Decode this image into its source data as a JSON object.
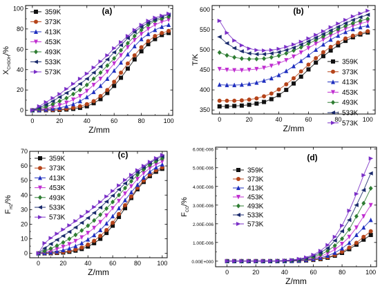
{
  "chart_data": [
    {
      "id": "a",
      "type": "line",
      "panel_label": "(a)",
      "xlabel": "Z/mm",
      "ylabel": "X",
      "ylabel_sub": "CH3OH",
      "ylabel_unit": "/%",
      "xlim": [
        -5,
        103
      ],
      "ylim": [
        -5,
        103
      ],
      "xticks": [
        0,
        20,
        40,
        60,
        80,
        100
      ],
      "yticks": [
        0,
        20,
        40,
        60,
        80,
        100
      ],
      "legend_position": "top-left",
      "x": [
        0,
        5,
        10,
        15,
        20,
        25,
        30,
        35,
        40,
        45,
        50,
        55,
        60,
        65,
        70,
        75,
        80,
        85,
        90,
        95,
        100
      ],
      "series": [
        {
          "name": "359K",
          "color": "#111111",
          "marker": "square",
          "values": [
            0,
            0,
            0.1,
            0.2,
            0.4,
            0.8,
            1.4,
            2.4,
            4,
            7,
            11,
            17,
            24,
            32,
            41,
            50,
            58,
            65,
            70,
            74,
            76
          ]
        },
        {
          "name": "373K",
          "color": "#b5441a",
          "marker": "circle",
          "values": [
            0,
            0.1,
            0.2,
            0.4,
            0.8,
            1.5,
            2.5,
            4,
            6,
            9,
            14,
            20,
            28,
            37,
            46,
            54,
            62,
            68,
            73,
            76,
            78
          ]
        },
        {
          "name": "413K",
          "color": "#1f2fbf",
          "marker": "triangle-up",
          "values": [
            0,
            0.3,
            0.8,
            1.5,
            2.5,
            4,
            6,
            9,
            13,
            18,
            24,
            31,
            39,
            47,
            55,
            63,
            70,
            75,
            79,
            82,
            84
          ]
        },
        {
          "name": "453K",
          "color": "#c02ed0",
          "marker": "triangle-down",
          "values": [
            0,
            0.7,
            1.8,
            3.2,
            5,
            7.5,
            10.5,
            14,
            19,
            25,
            31,
            38,
            46,
            54,
            62,
            69,
            75,
            80,
            84,
            87,
            89
          ]
        },
        {
          "name": "493K",
          "color": "#2e7d32",
          "marker": "diamond",
          "values": [
            0,
            1.5,
            3.5,
            6,
            9,
            12,
            16,
            20,
            25,
            31,
            37,
            44,
            51,
            59,
            66,
            73,
            79,
            84,
            88,
            90,
            92
          ]
        },
        {
          "name": "533K",
          "color": "#1a2a6c",
          "marker": "triangle-left",
          "values": [
            0,
            2.5,
            5.5,
            9,
            13,
            17,
            21,
            26,
            31,
            37,
            43,
            50,
            57,
            64,
            71,
            77,
            82,
            86,
            89,
            92,
            94
          ]
        },
        {
          "name": "573K",
          "color": "#7a2fc7",
          "marker": "triangle-right",
          "values": [
            0,
            4,
            8,
            12,
            16,
            21,
            26,
            31,
            36,
            42,
            48,
            54,
            61,
            67,
            73,
            79,
            84,
            88,
            91,
            93,
            95
          ]
        }
      ]
    },
    {
      "id": "b",
      "type": "line",
      "panel_label": "(b)",
      "xlabel": "Z/mm",
      "ylabel": "T/K",
      "xlim": [
        -5,
        105
      ],
      "ylim": [
        340,
        610
      ],
      "xticks": [
        0,
        20,
        40,
        60,
        80,
        100
      ],
      "yticks": [
        350,
        400,
        450,
        500,
        550,
        600
      ],
      "legend_position": "bottom-right",
      "x": [
        0,
        5,
        10,
        15,
        20,
        25,
        30,
        35,
        40,
        45,
        50,
        55,
        60,
        65,
        70,
        75,
        80,
        85,
        90,
        95,
        100
      ],
      "series": [
        {
          "name": "359K",
          "color": "#111111",
          "marker": "square",
          "values": [
            359,
            359,
            360,
            361,
            363,
            366,
            370,
            377,
            387,
            400,
            416,
            433,
            451,
            468,
            484,
            498,
            511,
            522,
            531,
            538,
            543
          ]
        },
        {
          "name": "373K",
          "color": "#b5441a",
          "marker": "circle",
          "values": [
            373,
            373,
            373,
            374,
            376,
            379,
            384,
            391,
            401,
            414,
            429,
            446,
            463,
            479,
            494,
            507,
            518,
            528,
            535,
            541,
            546
          ]
        },
        {
          "name": "413K",
          "color": "#1f2fbf",
          "marker": "triangle-up",
          "values": [
            413,
            412,
            412,
            413,
            415,
            418,
            423,
            429,
            437,
            447,
            459,
            472,
            486,
            500,
            513,
            525,
            535,
            544,
            551,
            556,
            560
          ]
        },
        {
          "name": "453K",
          "color": "#c02ed0",
          "marker": "triangle-down",
          "values": [
            452,
            450,
            449,
            449,
            450,
            452,
            455,
            460,
            466,
            474,
            483,
            493,
            504,
            515,
            525,
            535,
            544,
            552,
            559,
            565,
            570
          ]
        },
        {
          "name": "493K",
          "color": "#2e7d32",
          "marker": "diamond",
          "values": [
            493,
            486,
            481,
            478,
            477,
            477,
            478,
            481,
            485,
            491,
            498,
            506,
            515,
            524,
            533,
            542,
            551,
            559,
            566,
            572,
            577
          ]
        },
        {
          "name": "533K",
          "color": "#1a2a6c",
          "marker": "triangle-left",
          "values": [
            532,
            516,
            504,
            496,
            491,
            489,
            489,
            491,
            494,
            499,
            505,
            513,
            521,
            530,
            539,
            548,
            557,
            566,
            574,
            581,
            587
          ]
        },
        {
          "name": "573K",
          "color": "#7a2fc7",
          "marker": "triangle-right",
          "values": [
            572,
            542,
            523,
            511,
            503,
            499,
            498,
            499,
            502,
            507,
            513,
            520,
            528,
            537,
            546,
            556,
            565,
            574,
            583,
            590,
            597
          ]
        }
      ]
    },
    {
      "id": "c",
      "type": "line",
      "panel_label": "(c)",
      "xlabel": "Z/mm",
      "ylabel": "F",
      "ylabel_sub": "H2",
      "ylabel_unit": "/%",
      "xlim": [
        -7,
        104
      ],
      "ylim": [
        -3,
        70
      ],
      "xticks": [
        0,
        20,
        40,
        60,
        80,
        100
      ],
      "yticks": [
        0,
        10,
        20,
        30,
        40,
        50,
        60,
        70
      ],
      "legend_position": "top-left",
      "x": [
        0,
        5,
        10,
        15,
        20,
        25,
        30,
        35,
        40,
        45,
        50,
        55,
        60,
        65,
        70,
        75,
        80,
        85,
        90,
        95,
        100
      ],
      "series": [
        {
          "name": "359K",
          "color": "#111111",
          "marker": "square",
          "values": [
            0,
            0,
            0.1,
            0.3,
            0.6,
            1.1,
            1.9,
            3,
            4.7,
            7,
            10,
            14,
            19,
            25,
            31,
            38,
            44,
            49,
            53,
            56,
            58
          ]
        },
        {
          "name": "373K",
          "color": "#b5441a",
          "marker": "circle",
          "values": [
            0,
            0.1,
            0.2,
            0.5,
            0.9,
            1.6,
            2.6,
            4,
            6,
            8.6,
            12,
            16,
            21,
            27,
            33,
            39,
            45,
            50,
            54,
            57,
            59
          ]
        },
        {
          "name": "413K",
          "color": "#1f2fbf",
          "marker": "triangle-up",
          "values": [
            0,
            0.3,
            0.7,
            1.3,
            2.2,
            3.4,
            5,
            7,
            9.5,
            12.5,
            16,
            20.5,
            25.5,
            31,
            36.5,
            42,
            47,
            52,
            56,
            59,
            61
          ]
        },
        {
          "name": "453K",
          "color": "#c02ed0",
          "marker": "triangle-down",
          "values": [
            0,
            0.8,
            1.8,
            3,
            4.5,
            6.3,
            8.5,
            11,
            14,
            17.5,
            21.5,
            26,
            31,
            36,
            41,
            46,
            51,
            55,
            58.5,
            61,
            63
          ]
        },
        {
          "name": "493K",
          "color": "#2e7d32",
          "marker": "diamond",
          "values": [
            0,
            1.5,
            3.3,
            5.3,
            7.5,
            10,
            12.7,
            15.7,
            19,
            22.6,
            26.5,
            30.8,
            35.3,
            40,
            44.8,
            49.5,
            53.8,
            57.5,
            60.5,
            63,
            65
          ]
        },
        {
          "name": "533K",
          "color": "#1a2a6c",
          "marker": "triangle-left",
          "values": [
            0,
            3.5,
            6.5,
            9.3,
            12,
            14.8,
            17.8,
            21,
            24.3,
            27.8,
            31.5,
            35.5,
            39.6,
            43.8,
            48,
            52,
            55.7,
            59,
            62,
            64.5,
            66.5
          ]
        },
        {
          "name": "573K",
          "color": "#7a2fc7",
          "marker": "triangle-right",
          "values": [
            0,
            7,
            10.5,
            13.5,
            16.3,
            19.2,
            22.2,
            25.3,
            28.5,
            31.8,
            35.3,
            39,
            42.8,
            46.6,
            50.3,
            53.8,
            57,
            60,
            62.8,
            65.3,
            67.5
          ]
        }
      ]
    },
    {
      "id": "d",
      "type": "line",
      "panel_label": "(d)",
      "xlabel": "Z/mm",
      "ylabel": "F",
      "ylabel_sub": "CO",
      "ylabel_unit": "/%",
      "xlim": [
        -8,
        104
      ],
      "ylim": [
        -3e-07,
        6.1e-06
      ],
      "xticks": [
        0,
        20,
        40,
        60,
        80,
        100
      ],
      "yticks": [
        0,
        1e-06,
        2e-06,
        3e-06,
        4e-06,
        5e-06,
        6e-06
      ],
      "ytick_labels": [
        "0.00E+000",
        "1.00E-006",
        "2.00E-006",
        "3.00E-006",
        "4.00E-006",
        "5.00E-006",
        "6.00E-006"
      ],
      "legend_position": "top-left",
      "x": [
        0,
        5,
        10,
        15,
        20,
        25,
        30,
        35,
        40,
        45,
        50,
        55,
        60,
        65,
        70,
        75,
        80,
        85,
        90,
        95,
        100
      ],
      "series": [
        {
          "name": "359K",
          "color": "#111111",
          "marker": "square",
          "values": [
            0,
            0,
            0,
            0,
            0,
            0,
            0,
            1e-09,
            3e-09,
            8e-09,
            1.7e-08,
            3.5e-08,
            6.5e-08,
            1.1e-07,
            1.8e-07,
            2.9e-07,
            4.4e-07,
            6.4e-07,
            8.8e-07,
            1.15e-06,
            1.4e-06
          ]
        },
        {
          "name": "373K",
          "color": "#b5441a",
          "marker": "circle",
          "values": [
            0,
            0,
            0,
            0,
            0,
            0,
            0,
            2e-09,
            5e-09,
            1.1e-08,
            2.2e-08,
            4.3e-08,
            7.8e-08,
            1.3e-07,
            2.1e-07,
            3.3e-07,
            5e-07,
            7.2e-07,
            9.8e-07,
            1.3e-06,
            1.6e-06
          ]
        },
        {
          "name": "413K",
          "color": "#1f2fbf",
          "marker": "triangle-up",
          "values": [
            0,
            0,
            0,
            0,
            0,
            0,
            1e-09,
            3e-09,
            7e-09,
            1.6e-08,
            3.2e-08,
            6e-08,
            1.1e-07,
            1.8e-07,
            2.9e-07,
            4.5e-07,
            6.8e-07,
            9.8e-07,
            1.4e-06,
            1.8e-06,
            2.2e-06
          ]
        },
        {
          "name": "453K",
          "color": "#c02ed0",
          "marker": "triangle-down",
          "values": [
            0,
            0,
            0,
            0,
            0,
            0,
            2e-09,
            5e-09,
            1.2e-08,
            2.6e-08,
            5e-08,
            9e-08,
            1.6e-07,
            2.6e-07,
            4.1e-07,
            6.2e-07,
            9.2e-07,
            1.3e-06,
            1.8e-06,
            2.4e-06,
            3e-06
          ]
        },
        {
          "name": "493K",
          "color": "#2e7d32",
          "marker": "diamond",
          "values": [
            0,
            0,
            0,
            0,
            0,
            1e-09,
            3e-09,
            8e-09,
            1.8e-08,
            3.8e-08,
            7e-08,
            1.3e-07,
            2.2e-07,
            3.5e-07,
            5.5e-07,
            8.3e-07,
            1.2e-06,
            1.7e-06,
            2.4e-06,
            3.1e-06,
            3.9e-06
          ]
        },
        {
          "name": "533K",
          "color": "#1a2a6c",
          "marker": "triangle-left",
          "values": [
            0,
            0,
            0,
            0,
            0,
            2e-09,
            5e-09,
            1.2e-08,
            2.6e-08,
            5e-08,
            9e-08,
            1.6e-07,
            2.8e-07,
            4.5e-07,
            7e-07,
            1.1e-06,
            1.6e-06,
            2.2e-06,
            3e-06,
            3.8e-06,
            4.7e-06
          ]
        },
        {
          "name": "573K",
          "color": "#7a2fc7",
          "marker": "triangle-right",
          "values": [
            0,
            0,
            0,
            0,
            0,
            3e-09,
            8e-09,
            1.8e-08,
            3.6e-08,
            6.6e-08,
            1.2e-07,
            2e-07,
            3.4e-07,
            5.5e-07,
            8.6e-07,
            1.3e-06,
            1.9e-06,
            2.7e-06,
            3.6e-06,
            4.6e-06,
            5.5e-06
          ]
        }
      ]
    }
  ]
}
